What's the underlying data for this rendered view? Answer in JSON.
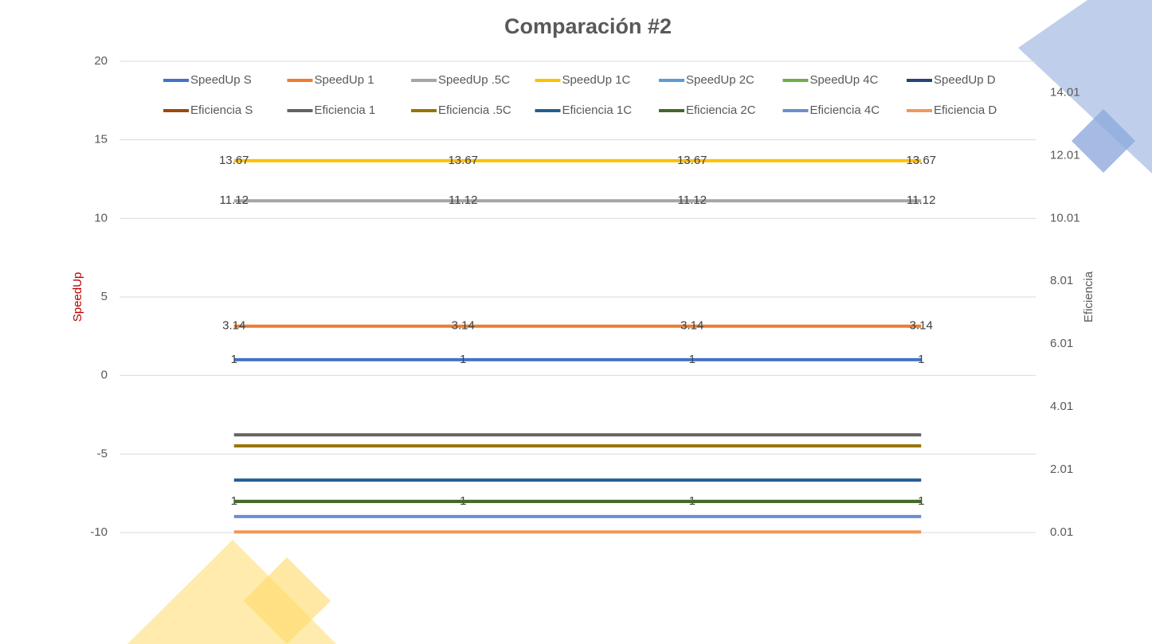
{
  "chart_data": {
    "type": "line",
    "title": "Comparación #2",
    "ylabel": "SpeedUp",
    "y2label": "Eficiencia",
    "categories": [
      null,
      null,
      null,
      null
    ],
    "ylim": [
      -10,
      20
    ],
    "yticks": [
      -10,
      -5,
      0,
      5,
      10,
      15,
      20
    ],
    "y2lim": [
      0.01,
      15.01
    ],
    "y2ticks": [
      0.01,
      2.01,
      4.01,
      6.01,
      8.01,
      10.01,
      12.01,
      14.01
    ],
    "grid": true,
    "legend": "top",
    "series": [
      {
        "name": "SpeedUp S",
        "color": "#4472c4",
        "values": [
          1,
          1,
          1,
          1
        ],
        "data_labels": true
      },
      {
        "name": "SpeedUp 1",
        "color": "#ed7d31",
        "values": [
          3.14,
          3.14,
          3.14,
          3.14
        ],
        "data_labels": true
      },
      {
        "name": "SpeedUp .5C",
        "color": "#a5a5a5",
        "values": [
          11.12,
          11.12,
          11.12,
          11.12
        ],
        "data_labels": true
      },
      {
        "name": "SpeedUp 1C",
        "color": "#ffc000",
        "values": [
          13.67,
          13.67,
          13.67,
          13.67
        ],
        "data_labels": true
      },
      {
        "name": "SpeedUp 2C",
        "color": "#5b9bd5",
        "values": [
          null,
          null,
          null,
          null
        ]
      },
      {
        "name": "SpeedUp 4C",
        "color": "#70ad47",
        "values": [
          null,
          null,
          null,
          null
        ]
      },
      {
        "name": "SpeedUp D",
        "color": "#264478",
        "values": [
          null,
          null,
          null,
          null
        ]
      },
      {
        "name": "Eficiencia  S",
        "color": "#9e480e",
        "values": [
          1,
          1,
          1,
          1
        ],
        "axis": "y2",
        "data_labels": true
      },
      {
        "name": "Eficiencia 1",
        "color": "#636363",
        "values": [
          3.12,
          3.12,
          3.12,
          3.12
        ],
        "axis": "y2"
      },
      {
        "name": "Eficiencia .5C",
        "color": "#997300",
        "values": [
          2.77,
          2.77,
          2.77,
          2.77
        ],
        "axis": "y2"
      },
      {
        "name": "Eficiencia 1C",
        "color": "#255e91",
        "values": [
          1.68,
          1.68,
          1.68,
          1.68
        ],
        "axis": "y2"
      },
      {
        "name": "Eficiencia 2C",
        "color": "#43682b",
        "values": [
          1,
          1,
          1,
          1
        ],
        "axis": "y2"
      },
      {
        "name": "Eficiencia 4C",
        "color": "#698ed0",
        "values": [
          0.52,
          0.52,
          0.52,
          0.52
        ],
        "axis": "y2"
      },
      {
        "name": "Eficiencia D",
        "color": "#f1975a",
        "values": [
          0.03,
          0.03,
          0.03,
          0.03
        ],
        "axis": "y2"
      }
    ]
  }
}
